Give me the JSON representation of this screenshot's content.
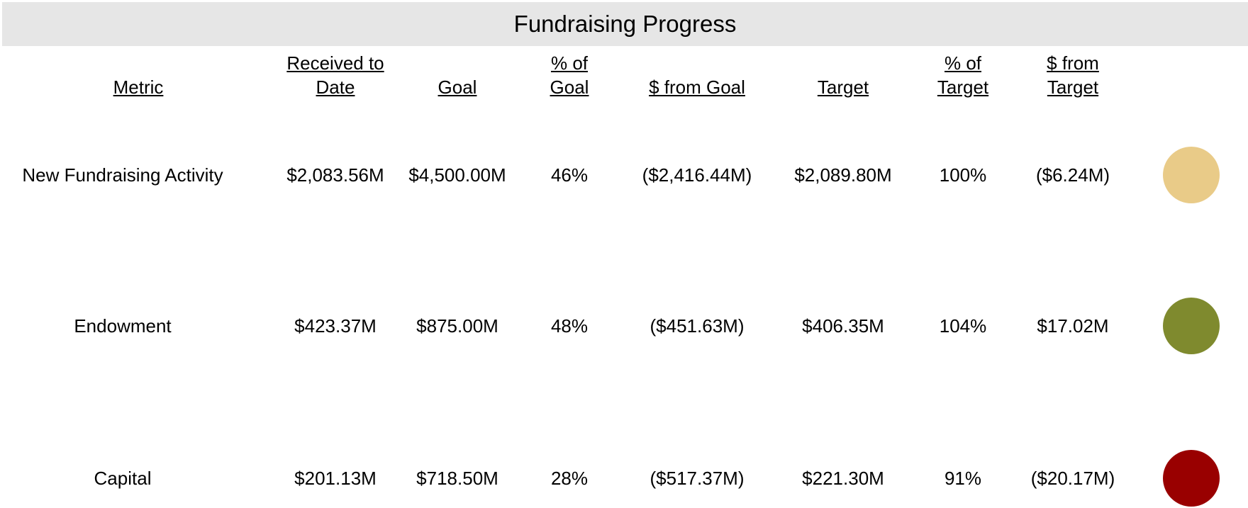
{
  "title": "Fundraising Progress",
  "columns": [
    "Metric",
    "Received to Date",
    "Goal",
    "% of Goal",
    "$ from Goal",
    "Target",
    "% of Target",
    "$ from Target"
  ],
  "rows": [
    {
      "cells": [
        "New Fundraising Activity",
        "$2,083.56M",
        "$4,500.00M",
        "46%",
        "($2,416.44M)",
        "$2,089.80M",
        "100%",
        "($6.24M)"
      ],
      "status_color": "#e9cb88"
    },
    {
      "cells": [
        "Endowment",
        "$423.37M",
        "$875.00M",
        "48%",
        "($451.63M)",
        "$406.35M",
        "104%",
        "$17.02M"
      ],
      "status_color": "#7f8a2e"
    },
    {
      "cells": [
        "Capital",
        "$201.13M",
        "$718.50M",
        "28%",
        "($517.37M)",
        "$221.30M",
        "91%",
        "($20.17M)"
      ],
      "status_color": "#990000"
    }
  ]
}
